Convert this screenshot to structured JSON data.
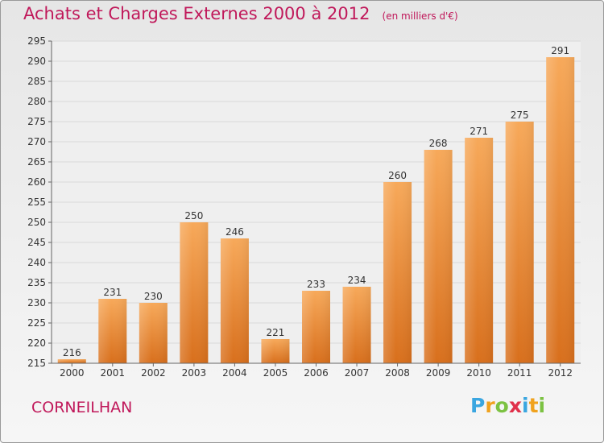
{
  "header": {
    "title": "Achats et Charges Externes 2000 à 2012",
    "unit": "(en milliers d'€)"
  },
  "footer": {
    "commune": "CORNEILHAN",
    "brand": "Proxiti"
  },
  "colors": {
    "title": "#c0185a",
    "bar_light": "#f7a95a",
    "bar_dark": "#d86f1c",
    "grid": "#d8d8d8",
    "axis": "#666666"
  },
  "chart_data": {
    "type": "bar",
    "title": "Achats et Charges Externes 2000 à 2012",
    "xlabel": "",
    "ylabel": "",
    "categories": [
      "2000",
      "2001",
      "2002",
      "2003",
      "2004",
      "2005",
      "2006",
      "2007",
      "2008",
      "2009",
      "2010",
      "2011",
      "2012"
    ],
    "values": [
      216,
      231,
      230,
      250,
      246,
      221,
      233,
      234,
      260,
      268,
      271,
      275,
      291
    ],
    "ylim": [
      215,
      295
    ],
    "yticks": [
      215,
      220,
      225,
      230,
      235,
      240,
      245,
      250,
      255,
      260,
      265,
      270,
      275,
      280,
      285,
      290,
      295
    ],
    "grid": true,
    "data_labels": true
  }
}
